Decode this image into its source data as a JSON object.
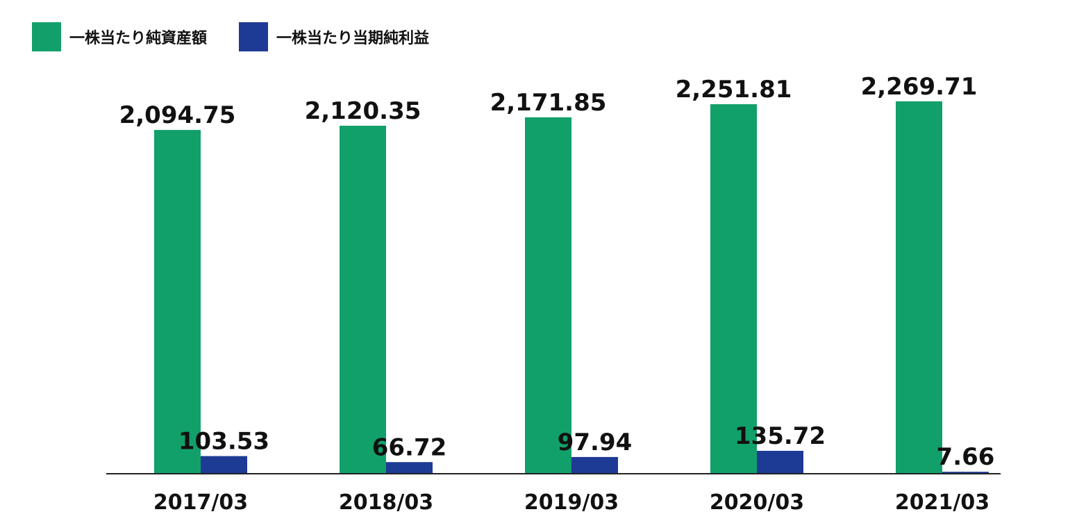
{
  "colors": {
    "nav": "#12a06a",
    "eps": "#1d3a94",
    "axis": "#222222"
  },
  "chart_data": {
    "type": "bar",
    "title": "",
    "xlabel": "",
    "ylabel": "",
    "categories": [
      "2017/03",
      "2018/03",
      "2019/03",
      "2020/03",
      "2021/03"
    ],
    "series": [
      {
        "name": "一株当たり純資産額",
        "values": [
          2094.75,
          2120.35,
          2171.85,
          2251.81,
          2269.71
        ],
        "labels": [
          "2,094.75",
          "2,120.35",
          "2,171.85",
          "2,251.81",
          "2,269.71"
        ]
      },
      {
        "name": "一株当たり当期純利益",
        "values": [
          103.53,
          66.72,
          97.94,
          135.72,
          7.66
        ],
        "labels": [
          "103.53",
          "66.72",
          "97.94",
          "135.72",
          "7.66"
        ]
      }
    ],
    "ylim": [
      0,
      2400
    ],
    "grid": false,
    "legend": "top-left"
  }
}
